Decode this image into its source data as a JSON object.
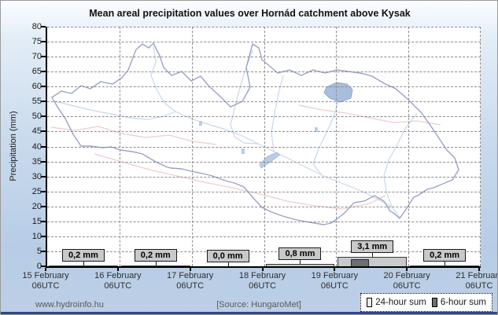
{
  "title": "Mean areal precipitation values over Hornád catchment above Kysak",
  "y_axis": {
    "label": "Precipitation (mm)",
    "min": 0,
    "max": 80,
    "step": 5
  },
  "x_axis": {
    "tick_labels": [
      {
        "date": "15 February",
        "time": "06UTC"
      },
      {
        "date": "16 February",
        "time": "06UTC"
      },
      {
        "date": "17 February",
        "time": "06UTC"
      },
      {
        "date": "18 February",
        "time": "06UTC"
      },
      {
        "date": "19 February",
        "time": "06UTC"
      },
      {
        "date": "20 February",
        "time": "06UTC"
      },
      {
        "date": "21 February",
        "time": "06UTC"
      }
    ]
  },
  "chart_data": {
    "type": "bar",
    "title": "Mean areal precipitation values over Hornád catchment above Kysak",
    "xlabel": "",
    "ylabel": "Precipitation (mm)",
    "ylim": [
      0,
      80
    ],
    "grid": "dashed",
    "legend_position": "bottom-right",
    "categories": [
      "15-16 February",
      "16-17 February",
      "17-18 February",
      "18-19 February",
      "19-20 February",
      "20-21 February"
    ],
    "series": [
      {
        "name": "24-hour sum",
        "values": [
          0.2,
          0.2,
          0.0,
          0.8,
          3.1,
          0.2
        ],
        "value_labels": [
          "0,2 mm",
          "0,2 mm",
          "0,0 mm",
          "0,8 mm",
          "3,1 mm",
          "0,2 mm"
        ],
        "color": "#c9c9c9"
      },
      {
        "name": "6-hour sum",
        "color": "#6e6e6e",
        "visible_bars": [
          {
            "category_index": 4,
            "offset_fraction": 0.2,
            "width_fraction": 0.25,
            "value_mm_estimated": 2.4
          }
        ]
      }
    ]
  },
  "legend": {
    "items": [
      {
        "label": "24-hour sum",
        "color": "#ececec"
      },
      {
        "label": "6-hour sum",
        "color": "#6e6e6e"
      }
    ]
  },
  "footer": {
    "website": "www.hydroinfo.hu",
    "source": "[Source: HungaroMet]"
  },
  "map": {
    "description": "Hornád catchment outline with rivers and lake (background watermark)",
    "boundary_color": "#9aa3c6",
    "river_color": "#c8d8ea",
    "border_line_color": "#f0cccc",
    "lake_color": "#a9bedd"
  },
  "colors": {
    "plot_background": "#ffffff",
    "page_gradient_top": "#fbfdff",
    "page_gradient_bottom": "#b7cde5",
    "gridline": "#8d8d8d",
    "bottom_strip": "#2a4a80"
  }
}
